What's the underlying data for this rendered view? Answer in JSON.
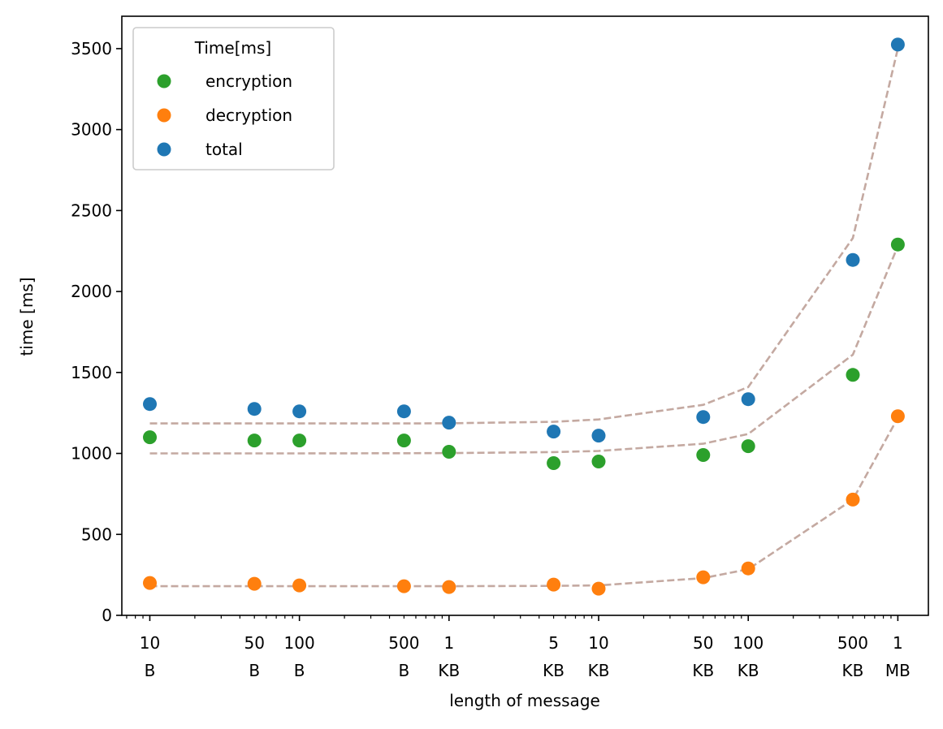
{
  "chart_data": {
    "type": "scatter",
    "xlabel": "length of message",
    "ylabel": "time [ms]",
    "xscale": "log",
    "xlim_bytes": [
      6.5,
      1600000
    ],
    "ylim": [
      0,
      3700
    ],
    "grid": false,
    "yticks": [
      0,
      500,
      1000,
      1500,
      2000,
      2500,
      3000,
      3500
    ],
    "xticks": [
      {
        "bytes": 10,
        "top": "10",
        "bottom": "B"
      },
      {
        "bytes": 50,
        "top": "50",
        "bottom": "B"
      },
      {
        "bytes": 100,
        "top": "100",
        "bottom": "B"
      },
      {
        "bytes": 500,
        "top": "500",
        "bottom": "B"
      },
      {
        "bytes": 1000,
        "top": "1",
        "bottom": "KB"
      },
      {
        "bytes": 5000,
        "top": "5",
        "bottom": "KB"
      },
      {
        "bytes": 10000,
        "top": "10",
        "bottom": "KB"
      },
      {
        "bytes": 50000,
        "top": "50",
        "bottom": "KB"
      },
      {
        "bytes": 100000,
        "top": "100",
        "bottom": "KB"
      },
      {
        "bytes": 500000,
        "top": "500",
        "bottom": "KB"
      },
      {
        "bytes": 1000000,
        "top": "1",
        "bottom": "MB"
      }
    ],
    "x_bytes": [
      10,
      50,
      100,
      500,
      1000,
      5000,
      10000,
      50000,
      100000,
      500000,
      1000000
    ],
    "legend": {
      "title": "Time[ms]",
      "placement": "upper-left"
    },
    "series": [
      {
        "name": "encryption",
        "color": "#2ca02c",
        "values": [
          1100,
          1080,
          1080,
          1080,
          1010,
          940,
          950,
          990,
          1045,
          1485,
          2290
        ]
      },
      {
        "name": "decryption",
        "color": "#ff7f0e",
        "values": [
          200,
          195,
          185,
          180,
          175,
          190,
          165,
          235,
          290,
          715,
          1230
        ]
      },
      {
        "name": "total",
        "color": "#1f77b4",
        "values": [
          1305,
          1275,
          1260,
          1260,
          1190,
          1135,
          1110,
          1225,
          1335,
          2195,
          3525
        ]
      }
    ],
    "trend_lines": {
      "color": "#c4a9a1",
      "style": "dashed",
      "lines": [
        {
          "values": [
            1185,
            1185,
            1185,
            1185,
            1186,
            1195,
            1210,
            1300,
            1410,
            2330,
            3500
          ]
        },
        {
          "values": [
            1000,
            1000,
            1000,
            1001,
            1002,
            1008,
            1015,
            1060,
            1120,
            1610,
            2280
          ]
        },
        {
          "values": [
            180,
            180,
            180,
            180,
            180,
            182,
            185,
            230,
            285,
            715,
            1220
          ]
        }
      ]
    }
  }
}
